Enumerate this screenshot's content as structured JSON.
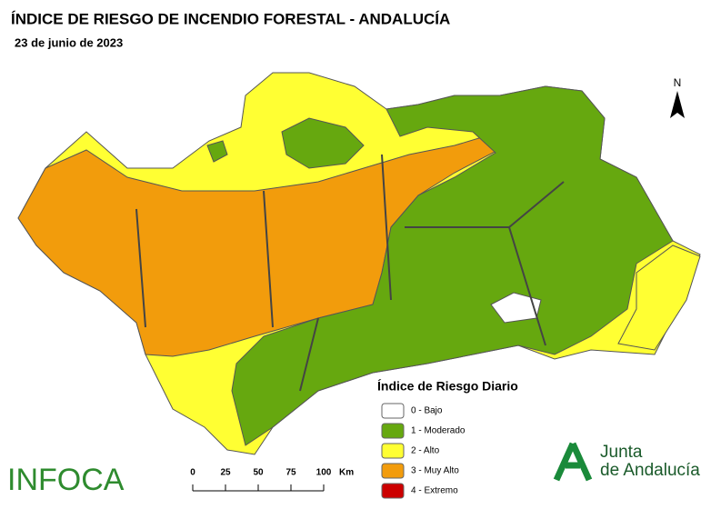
{
  "header": {
    "title": "ÍNDICE DE RIESGO DE INCENDIO FORESTAL - ANDALUCÍA",
    "date": "23 de junio de 2023"
  },
  "north": "N",
  "legend": {
    "title": "Índice de Riesgo Diario",
    "items": [
      {
        "label": "0 - Bajo",
        "color": "#ffffff"
      },
      {
        "label": "1 - Moderado",
        "color": "#66a80f"
      },
      {
        "label": "2 - Alto",
        "color": "#ffff33"
      },
      {
        "label": "3 - Muy Alto",
        "color": "#f29c0c"
      },
      {
        "label": "4 - Extremo",
        "color": "#cc0000"
      }
    ]
  },
  "scale": {
    "ticks": [
      0,
      25,
      50,
      75,
      100
    ],
    "unit": "Km"
  },
  "logos": {
    "infoca": "INFOCA",
    "junta_1": "Junta",
    "junta_2": "de Andalucía"
  }
}
